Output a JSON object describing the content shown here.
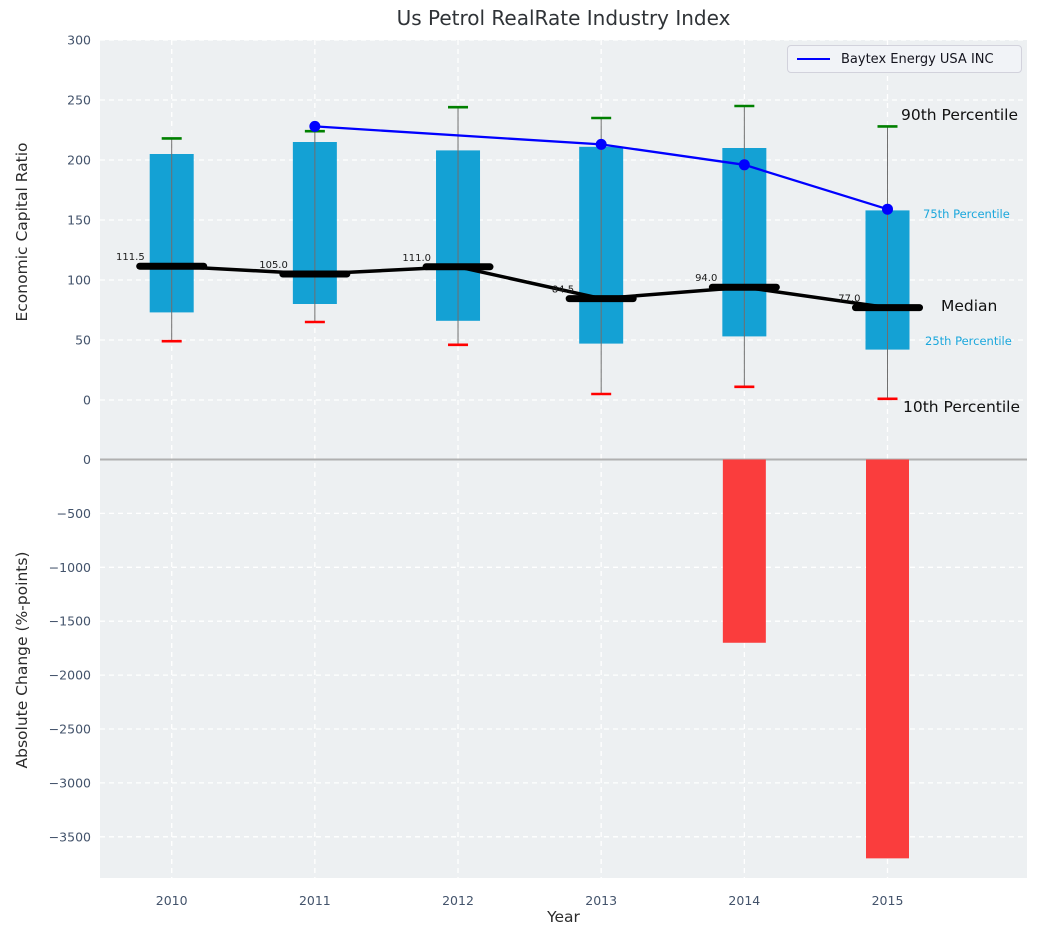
{
  "chart_data": {
    "type": "combo",
    "title": "Us Petrol RealRate Industry Index",
    "xlabel": "Year",
    "categories": [
      "2010",
      "2011",
      "2012",
      "2013",
      "2014",
      "2015"
    ],
    "grid": true,
    "legend": {
      "position": "upper right",
      "entries": [
        {
          "label": "Baytex Energy USA INC",
          "color": "#0000ff",
          "marker": "line"
        }
      ]
    },
    "top_panel": {
      "ylabel": "Economic Capital Ratio",
      "ylim": [
        -36,
        300
      ],
      "ytick_values": [
        0,
        50,
        100,
        150,
        200,
        250,
        300
      ],
      "ytick_labels": [
        "0",
        "50",
        "100",
        "150",
        "200",
        "250",
        "300"
      ],
      "series": {
        "p90": {
          "name": "90th Percentile",
          "values": [
            218,
            224,
            244,
            235,
            245,
            228
          ]
        },
        "p75": {
          "name": "75th Percentile",
          "values": [
            205,
            215,
            208,
            211,
            210,
            158
          ]
        },
        "median": {
          "name": "Median",
          "values": [
            111.5,
            105,
            111,
            84.5,
            94,
            77
          ],
          "labels": [
            "111.5",
            "105.0",
            "111.0",
            "84.5",
            "94.0",
            "77.0"
          ]
        },
        "p25": {
          "name": "25th Percentile",
          "values": [
            73,
            80,
            66,
            47,
            53,
            42
          ]
        },
        "p10": {
          "name": "10th Percentile",
          "values": [
            49,
            65,
            46,
            5,
            11,
            1
          ]
        }
      },
      "company_line": {
        "name": "Baytex Energy USA INC",
        "years": [
          "2011",
          "2013",
          "2014",
          "2015"
        ],
        "values": [
          228,
          213,
          196,
          159
        ]
      }
    },
    "bottom_panel": {
      "ylabel": "Absolute Change (%-points)",
      "ylim": [
        -3880,
        153
      ],
      "ytick_values": [
        0,
        -500,
        -1000,
        -1500,
        -2000,
        -2500,
        -3000,
        -3500
      ],
      "ytick_labels": [
        "0",
        "−500",
        "−1000",
        "−1500",
        "−2000",
        "−2500",
        "−3000",
        "−3500"
      ],
      "bars": {
        "years": [
          "2014",
          "2015"
        ],
        "values": [
          -1700,
          -3700
        ]
      }
    },
    "colors": {
      "plot_background": "#edf0f2",
      "grid": "#ffffff",
      "bar": "#14a1d4",
      "percentile_label_text": "#1ba7dc",
      "company_line": "#0000ff",
      "cap_90th": "#008000",
      "cap_10th": "#ff0000",
      "change_bar": "#fa3d3d",
      "whisker": "#6f6f6f",
      "median": "#000000",
      "zero_line": "#b0b0b0",
      "tick_text": "#43536b",
      "axis_text": "#2b2b2b",
      "annotation_text": "#111111"
    }
  }
}
